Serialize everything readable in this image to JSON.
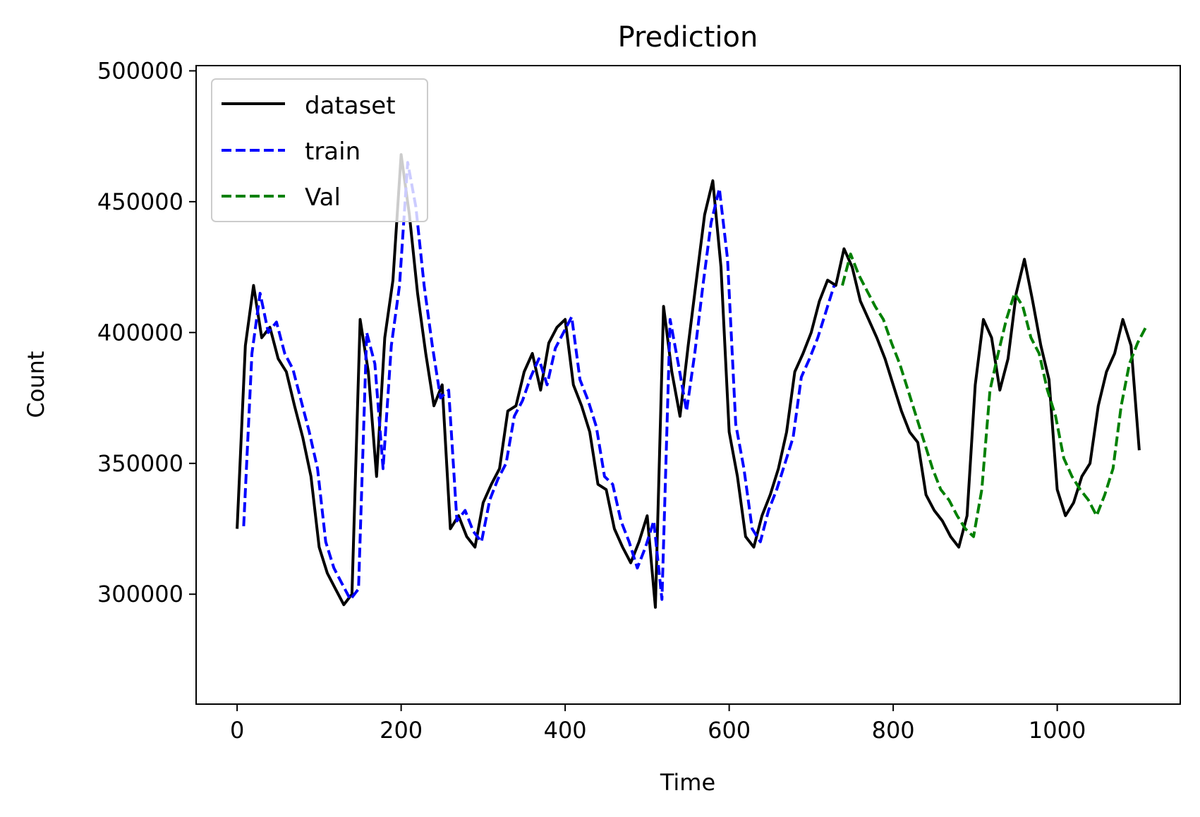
{
  "chart_data": {
    "type": "line",
    "title": "Prediction",
    "xlabel": "Time",
    "ylabel": "Count",
    "xlim": [
      -50,
      1150
    ],
    "ylim": [
      258000,
      502000
    ],
    "x_ticks": [
      0,
      200,
      400,
      600,
      800,
      1000
    ],
    "y_ticks": [
      300000,
      350000,
      400000,
      450000,
      500000
    ],
    "grid": false,
    "legend_position": "top-left",
    "series": [
      {
        "name": "dataset",
        "color": "#000000",
        "dash": "solid",
        "x_start": 0,
        "x_step": 10,
        "values": [
          325000,
          395000,
          418000,
          398000,
          402000,
          390000,
          385000,
          372000,
          360000,
          345000,
          318000,
          308000,
          302000,
          296000,
          300000,
          405000,
          385000,
          345000,
          398000,
          420000,
          468000,
          445000,
          415000,
          392000,
          372000,
          380000,
          325000,
          330000,
          322000,
          318000,
          335000,
          342000,
          348000,
          370000,
          372000,
          385000,
          392000,
          378000,
          396000,
          402000,
          405000,
          380000,
          372000,
          362000,
          342000,
          340000,
          325000,
          318000,
          312000,
          320000,
          330000,
          295000,
          410000,
          385000,
          368000,
          395000,
          420000,
          445000,
          458000,
          425000,
          362000,
          345000,
          322000,
          318000,
          330000,
          338000,
          348000,
          362000,
          385000,
          392000,
          400000,
          412000,
          420000,
          418000,
          432000,
          425000,
          412000,
          405000,
          398000,
          390000,
          380000,
          370000,
          362000,
          358000,
          338000,
          332000,
          328000,
          322000,
          318000,
          330000,
          380000,
          405000,
          398000,
          378000,
          390000,
          415000,
          428000,
          412000,
          395000,
          382000,
          340000,
          330000,
          335000,
          345000,
          350000,
          372000,
          385000,
          392000,
          405000,
          395000,
          355000
        ]
      },
      {
        "name": "train",
        "color": "#0000ff",
        "dash": "dashed",
        "x_start": 8,
        "x_step": 10,
        "values": [
          326000,
          392000,
          415000,
          400000,
          404000,
          392000,
          386000,
          374000,
          362000,
          348000,
          320000,
          310000,
          304000,
          298000,
          302000,
          400000,
          388000,
          348000,
          395000,
          418000,
          465000,
          448000,
          418000,
          395000,
          375000,
          378000,
          328000,
          332000,
          324000,
          320000,
          336000,
          344000,
          350000,
          368000,
          374000,
          383000,
          390000,
          380000,
          394000,
          400000,
          406000,
          382000,
          374000,
          364000,
          345000,
          342000,
          328000,
          320000,
          310000,
          318000,
          328000,
          298000,
          405000,
          388000,
          370000,
          392000,
          418000,
          442000,
          455000,
          428000,
          365000,
          348000,
          325000,
          320000,
          332000,
          340000,
          350000,
          360000,
          383000,
          390000,
          398000,
          408000,
          418000
        ]
      },
      {
        "name": "Val",
        "color": "#008000",
        "dash": "dashed",
        "x_start": 738,
        "x_step": 10,
        "values": [
          418000,
          430000,
          422000,
          416000,
          410000,
          405000,
          396000,
          388000,
          378000,
          368000,
          358000,
          348000,
          340000,
          336000,
          330000,
          325000,
          322000,
          340000,
          378000,
          392000,
          405000,
          415000,
          410000,
          398000,
          392000,
          378000,
          368000,
          352000,
          345000,
          340000,
          336000,
          330000,
          338000,
          348000,
          372000,
          388000,
          396000,
          402000
        ]
      }
    ]
  }
}
